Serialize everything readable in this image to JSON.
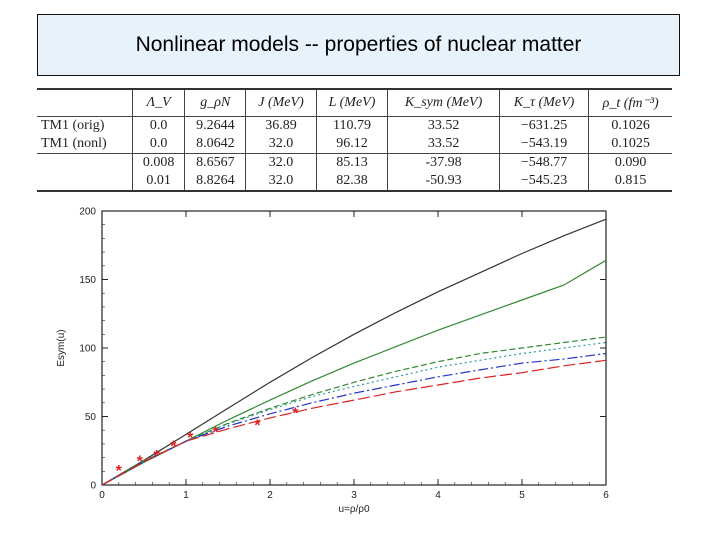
{
  "title": "Nonlinear models -- properties of nuclear matter",
  "table": {
    "headers": [
      "",
      "Λ_V",
      "g_ρN",
      "J (MeV)",
      "L (MeV)",
      "K_sym (MeV)",
      "K_τ (MeV)",
      "ρ_t (fm⁻³)"
    ],
    "rows": [
      [
        "TM1 (orig)",
        "0.0",
        "9.2644",
        "36.89",
        "110.79",
        "33.52",
        "−631.25",
        "0.1026"
      ],
      [
        "TM1 (nonl)",
        "0.0",
        "8.0642",
        "32.0",
        "96.12",
        "33.52",
        "−543.19",
        "0.1025"
      ],
      [
        "",
        "0.008",
        "8.6567",
        "32.0",
        "85.13",
        "-37.98",
        "−548.77",
        "0.090"
      ],
      [
        "",
        "0.01",
        "8.8264",
        "32.0",
        "82.38",
        "-50.93",
        "−545.23",
        "0.815"
      ]
    ]
  },
  "chart_data": {
    "type": "line",
    "title": "",
    "xlabel": "u=ρ/ρ0",
    "ylabel": "Esym(u)",
    "xlim": [
      0,
      6
    ],
    "ylim": [
      0,
      200
    ],
    "xticks": [
      0,
      1,
      2,
      3,
      4,
      5,
      6
    ],
    "yticks": [
      0,
      50,
      100,
      150,
      200
    ],
    "grid": false,
    "series": [
      {
        "color": "#333333",
        "dash": "",
        "x": [
          0,
          0.5,
          1,
          1.5,
          2,
          2.5,
          3,
          3.5,
          4,
          4.5,
          5,
          5.5,
          6
        ],
        "y": [
          0,
          18,
          36.9,
          56,
          75,
          93,
          110,
          126,
          141,
          155,
          169,
          182,
          194
        ]
      },
      {
        "color": "#338833",
        "dash": "",
        "x": [
          0,
          0.5,
          1,
          1.5,
          2,
          2.5,
          3,
          3.5,
          4,
          4.5,
          5,
          5.5,
          6
        ],
        "y": [
          0,
          16.5,
          32,
          47.5,
          62,
          76,
          89,
          101,
          113,
          124,
          135,
          146,
          164
        ]
      },
      {
        "color": "#338833",
        "dash": "6,3",
        "x": [
          0,
          0.5,
          1,
          1.5,
          2,
          2.5,
          3,
          3.5,
          4,
          4.5,
          5,
          5.5,
          6
        ],
        "y": [
          0,
          17.5,
          32,
          45,
          56,
          66,
          75,
          83,
          90,
          96,
          100,
          104,
          108
        ]
      },
      {
        "color": "#2a9a9a",
        "dash": "2,3",
        "x": [
          0,
          0.5,
          1,
          1.5,
          2,
          2.5,
          3,
          3.5,
          4,
          4.5,
          5,
          5.5,
          6
        ],
        "y": [
          0,
          17.3,
          32,
          44.5,
          55,
          64.5,
          72,
          79,
          86,
          91,
          96,
          100,
          104
        ]
      },
      {
        "color": "#2233cc",
        "dash": "10,3,2,3",
        "x": [
          0,
          0.5,
          1,
          1.5,
          2,
          2.5,
          3,
          3.5,
          4,
          4.5,
          5,
          5.5,
          6
        ],
        "y": [
          0,
          17,
          32,
          43,
          52,
          60,
          67,
          73,
          79,
          84,
          89,
          92,
          96
        ]
      },
      {
        "color": "#dd2222",
        "dash": "12,4",
        "x": [
          0,
          0.5,
          1,
          1.5,
          2,
          2.5,
          3,
          3.5,
          4,
          4.5,
          5,
          5.5,
          6
        ],
        "y": [
          0,
          17,
          32,
          41,
          49,
          56,
          62,
          68,
          73,
          78,
          82,
          87,
          91
        ]
      }
    ],
    "markers": {
      "symbol": "*",
      "color": "#dd2222",
      "x": [
        0.2,
        0.45,
        0.65,
        0.85,
        1.05,
        1.35,
        1.85,
        2.3
      ],
      "y": [
        11,
        18,
        22,
        29,
        35,
        39,
        44,
        53
      ]
    }
  }
}
